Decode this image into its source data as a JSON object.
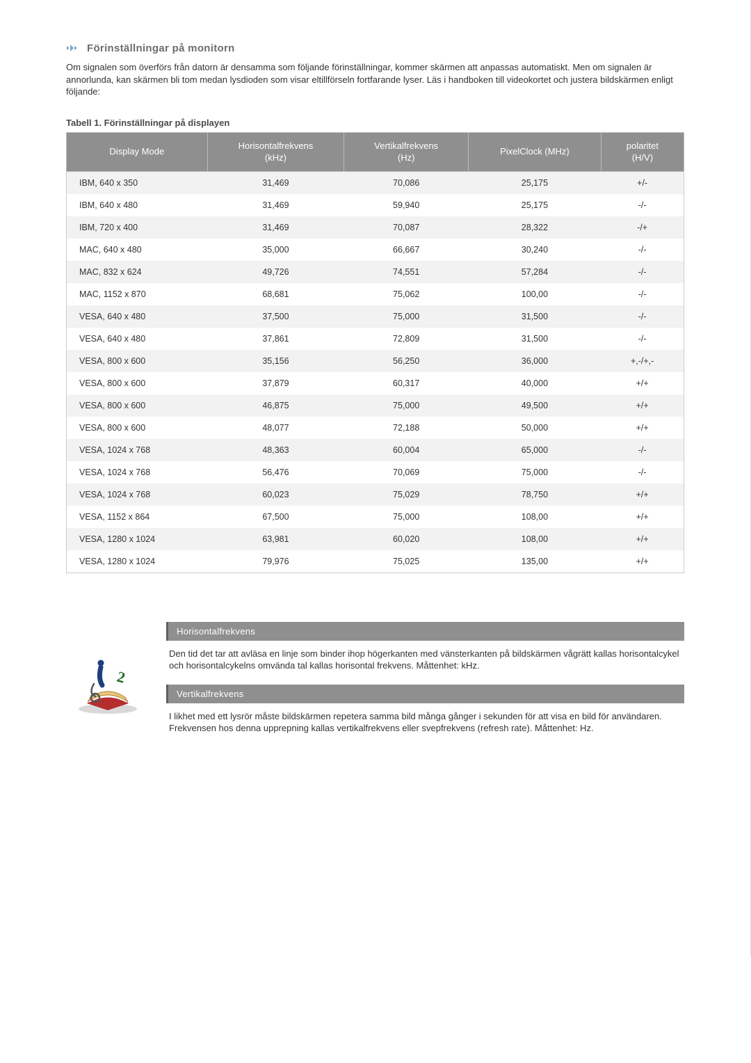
{
  "heading": "Förinställningar på monitorn",
  "intro": "Om signalen som överförs från datorn är densamma som följande förinställningar, kommer skärmen att anpassas automatiskt. Men om signalen är annorlunda, kan skärmen bli tom medan lysdioden som visar eltillförseln fortfarande lyser. Läs i handboken till videokortet och justera bildskärmen enligt följande:",
  "table": {
    "caption": "Tabell 1. Förinställningar på displayen",
    "headers": {
      "mode": "Display Mode",
      "hfreq": "Horisontalfrekvens\n(kHz)",
      "vfreq": "Vertikalfrekvens\n(Hz)",
      "pclk": "PixelClock (MHz)",
      "pol": "polaritet\n(H/V)"
    },
    "rows": [
      {
        "mode": "IBM, 640 x 350",
        "h": "31,469",
        "v": "70,086",
        "p": "25,175",
        "pol": "+/-"
      },
      {
        "mode": "IBM, 640 x 480",
        "h": "31,469",
        "v": "59,940",
        "p": "25,175",
        "pol": "-/-"
      },
      {
        "mode": "IBM, 720 x 400",
        "h": "31,469",
        "v": "70,087",
        "p": "28,322",
        "pol": "-/+"
      },
      {
        "mode": "MAC, 640 x 480",
        "h": "35,000",
        "v": "66,667",
        "p": "30,240",
        "pol": "-/-"
      },
      {
        "mode": "MAC, 832 x 624",
        "h": "49,726",
        "v": "74,551",
        "p": "57,284",
        "pol": "-/-"
      },
      {
        "mode": "MAC, 1152 x 870",
        "h": "68,681",
        "v": "75,062",
        "p": "100,00",
        "pol": "-/-"
      },
      {
        "mode": "VESA, 640 x 480",
        "h": "37,500",
        "v": "75,000",
        "p": "31,500",
        "pol": "-/-"
      },
      {
        "mode": "VESA, 640 x 480",
        "h": "37,861",
        "v": "72,809",
        "p": "31,500",
        "pol": "-/-"
      },
      {
        "mode": "VESA, 800 x 600",
        "h": "35,156",
        "v": "56,250",
        "p": "36,000",
        "pol": "+,-/+,-"
      },
      {
        "mode": "VESA, 800 x 600",
        "h": "37,879",
        "v": "60,317",
        "p": "40,000",
        "pol": "+/+"
      },
      {
        "mode": "VESA, 800 x 600",
        "h": "46,875",
        "v": "75,000",
        "p": "49,500",
        "pol": "+/+"
      },
      {
        "mode": "VESA, 800 x 600",
        "h": "48,077",
        "v": "72,188",
        "p": "50,000",
        "pol": "+/+"
      },
      {
        "mode": "VESA, 1024 x 768",
        "h": "48,363",
        "v": "60,004",
        "p": "65,000",
        "pol": "-/-"
      },
      {
        "mode": "VESA, 1024 x 768",
        "h": "56,476",
        "v": "70,069",
        "p": "75,000",
        "pol": "-/-"
      },
      {
        "mode": "VESA, 1024 x 768",
        "h": "60,023",
        "v": "75,029",
        "p": "78,750",
        "pol": "+/+"
      },
      {
        "mode": "VESA, 1152 x 864",
        "h": "67,500",
        "v": "75,000",
        "p": "108,00",
        "pol": "+/+"
      },
      {
        "mode": "VESA, 1280 x 1024",
        "h": "63,981",
        "v": "60,020",
        "p": "108,00",
        "pol": "+/+"
      },
      {
        "mode": "VESA, 1280 x 1024",
        "h": "79,976",
        "v": "75,025",
        "p": "135,00",
        "pol": "+/+"
      }
    ]
  },
  "definitions": {
    "hfreq": {
      "title": "Horisontalfrekvens",
      "body": "Den tid det tar att avläsa en linje som binder ihop högerkanten med vänsterkanten på bildskärmen vågrätt kallas horisontalcykel och horisontalcykelns omvända tal kallas horisontal frekvens. Måttenhet: kHz."
    },
    "vfreq": {
      "title": "Vertikalfrekvens",
      "body": "I likhet med ett lysrör måste bildskärmen repetera samma bild många gånger i sekunden för att visa en bild för användaren. Frekvensen hos denna upprepning kallas vertikalfrekvens eller svepfrekvens (refresh rate). Måttenhet: Hz."
    }
  },
  "style": {
    "header_bg": "#8f8f8f",
    "header_text": "#ffffff",
    "row_alt_bg": "#f2f2f2",
    "border_color": "#cccccc",
    "text_color": "#333333",
    "heading_color": "#6d6d6d"
  }
}
